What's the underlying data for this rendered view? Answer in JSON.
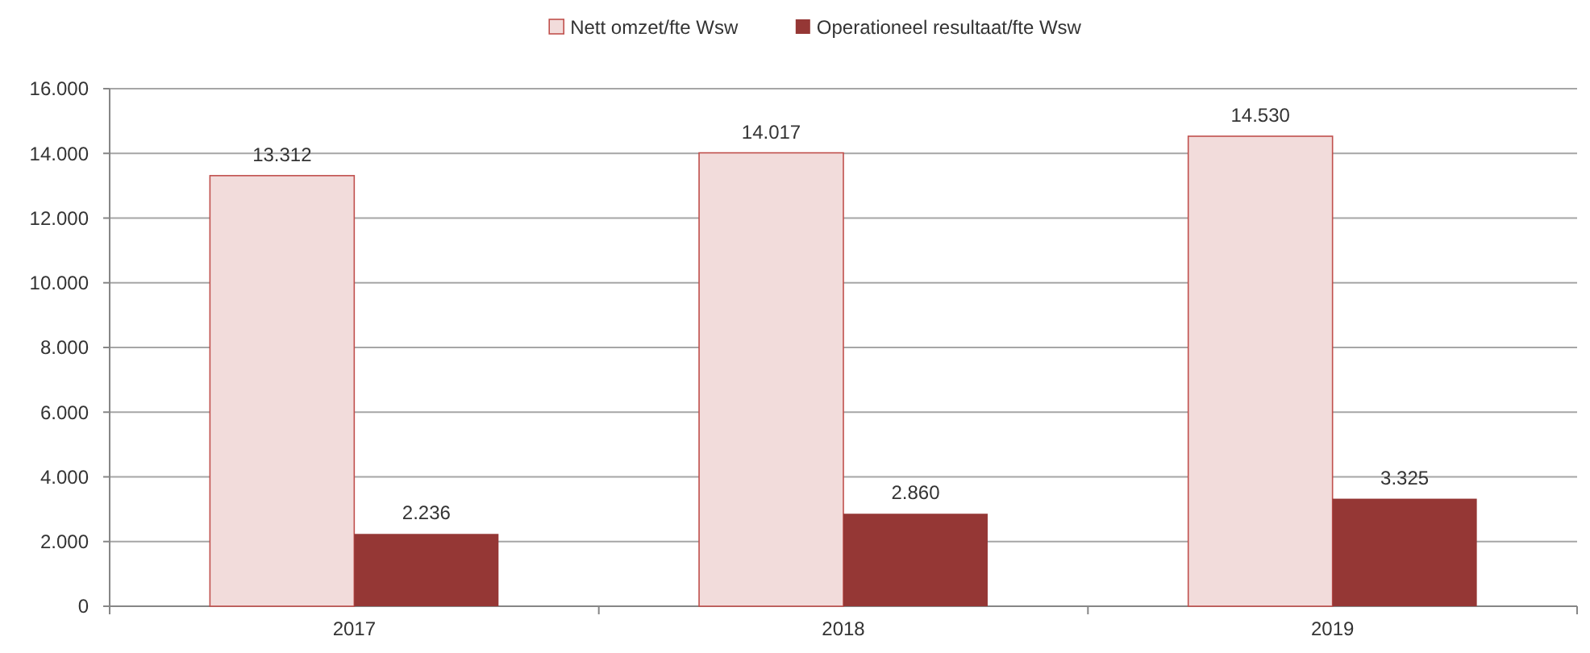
{
  "chart_data": {
    "type": "bar",
    "categories": [
      "2017",
      "2018",
      "2019"
    ],
    "series": [
      {
        "name": "Nett omzet/fte Wsw",
        "color": "#f2dcdb",
        "values": [
          13312,
          14017,
          14530
        ],
        "value_labels": [
          "13.312",
          "14.017",
          "14.530"
        ]
      },
      {
        "name": "Operationeel resultaat/fte Wsw",
        "color": "#953735",
        "values": [
          2236,
          2860,
          3325
        ],
        "value_labels": [
          "2.236",
          "2.860",
          "3.325"
        ]
      }
    ],
    "ylim": [
      0,
      16000
    ],
    "yticks": [
      {
        "value": 0,
        "label": "0"
      },
      {
        "value": 2000,
        "label": "2.000"
      },
      {
        "value": 4000,
        "label": "4.000"
      },
      {
        "value": 6000,
        "label": "6.000"
      },
      {
        "value": 8000,
        "label": "8.000"
      },
      {
        "value": 10000,
        "label": "10.000"
      },
      {
        "value": 12000,
        "label": "12.000"
      },
      {
        "value": 14000,
        "label": "14.000"
      },
      {
        "value": 16000,
        "label": "16.000"
      }
    ],
    "grid": "y",
    "legend": "top"
  }
}
